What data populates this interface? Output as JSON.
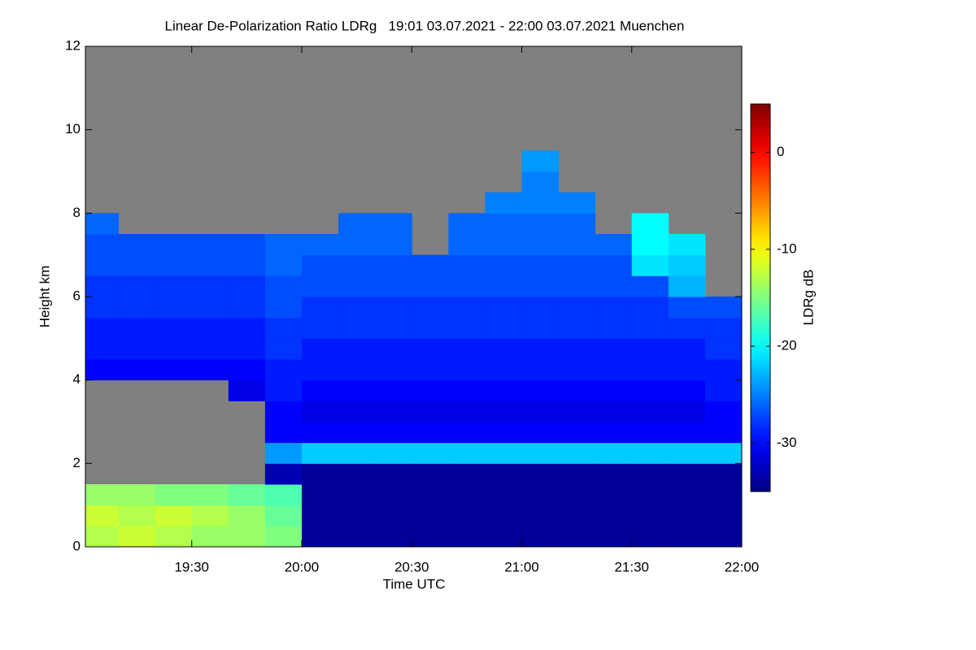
{
  "chart_data": {
    "type": "heatmap",
    "title": "Linear De-Polarization Ratio LDRg   19:01 03.07.2021 - 22:00 03.07.2021 Muenchen",
    "xlabel": "Time UTC",
    "ylabel": "Height km",
    "colorbar_label": "LDRg dB",
    "colormap": "jet",
    "missing_color": "#808080",
    "xlim": [
      19.0167,
      22.0
    ],
    "ylim": [
      0,
      12
    ],
    "clim": [
      -35,
      5
    ],
    "xticks": [
      {
        "value": 19.5,
        "label": "19:30"
      },
      {
        "value": 20,
        "label": "20:00"
      },
      {
        "value": 20.5,
        "label": "20:30"
      },
      {
        "value": 21,
        "label": "21:00"
      },
      {
        "value": 21.5,
        "label": "21:30"
      },
      {
        "value": 22,
        "label": "22:00"
      }
    ],
    "yticks": [
      0,
      2,
      4,
      6,
      8,
      10,
      12
    ],
    "cticks": [
      0,
      -10,
      -20,
      -30
    ],
    "x_edges": [
      19.0167,
      19.1667,
      19.3333,
      19.5,
      19.6667,
      19.8333,
      20.0,
      20.1667,
      20.3333,
      20.5,
      20.6667,
      20.8333,
      21.0,
      21.1667,
      21.3333,
      21.5,
      21.6667,
      21.8333,
      22.0
    ],
    "y_edges": [
      0,
      0.5,
      1,
      1.5,
      2,
      2.5,
      3,
      3.5,
      4,
      4.5,
      5,
      5.5,
      6,
      6.5,
      7,
      7.5,
      8,
      8.5,
      9,
      9.5,
      10,
      10.5,
      11,
      11.5,
      12
    ],
    "z": [
      [
        -13,
        -12,
        -14,
        null,
        null,
        null,
        null,
        null,
        -30,
        -29,
        -29,
        -28,
        -28,
        -27,
        -27,
        -26,
        null,
        null,
        null,
        null,
        null,
        null,
        null,
        null
      ],
      [
        -12,
        -13,
        -14,
        null,
        null,
        null,
        null,
        null,
        -30,
        -29,
        -29,
        -28,
        -28,
        -27,
        -27,
        null,
        null,
        null,
        null,
        null,
        null,
        null,
        null,
        null
      ],
      [
        -13,
        -12,
        -15,
        null,
        null,
        null,
        null,
        null,
        -30,
        -29,
        -29,
        -28,
        -28,
        -27,
        -27,
        null,
        null,
        null,
        null,
        null,
        null,
        null,
        null,
        null
      ],
      [
        -14,
        -13,
        -15,
        null,
        null,
        null,
        null,
        null,
        -30,
        -29,
        -29,
        -28,
        -28,
        -27,
        -27,
        null,
        null,
        null,
        null,
        null,
        null,
        null,
        null,
        null
      ],
      [
        -14,
        -14,
        -16,
        null,
        null,
        null,
        null,
        -31,
        -30,
        -29,
        -29,
        -28,
        -28,
        -27,
        -27,
        null,
        null,
        null,
        null,
        null,
        null,
        null,
        null,
        null
      ],
      [
        -15,
        -16,
        -17,
        -33,
        -24,
        -30,
        -30,
        -29,
        -29,
        -28,
        -28,
        -27,
        -27,
        -26,
        -26,
        null,
        null,
        null,
        null,
        null,
        null,
        null,
        null,
        null
      ],
      [
        -34,
        -34,
        -34,
        -34,
        -22,
        -30,
        -31,
        -30,
        -29,
        -29,
        -28,
        -28,
        -27,
        -27,
        -26,
        null,
        null,
        null,
        null,
        null,
        null,
        null,
        null,
        null
      ],
      [
        -34,
        -34,
        -34,
        -34,
        -22,
        -30,
        -31,
        -30,
        -29,
        -29,
        -28,
        -28,
        -27,
        -27,
        -26,
        -26,
        null,
        null,
        null,
        null,
        null,
        null,
        null,
        null
      ],
      [
        -34,
        -34,
        -34,
        -34,
        -22,
        -30,
        -31,
        -30,
        -29,
        -29,
        -28,
        -28,
        -27,
        -27,
        -26,
        -26,
        null,
        null,
        null,
        null,
        null,
        null,
        null,
        null
      ],
      [
        -34,
        -34,
        -34,
        -34,
        -22,
        -30,
        -31,
        -30,
        -29,
        -29,
        -28,
        -28,
        -27,
        -27,
        null,
        null,
        null,
        null,
        null,
        null,
        null,
        null,
        null,
        null
      ],
      [
        -34,
        -34,
        -34,
        -34,
        -22,
        -30,
        -31,
        -30,
        -29,
        -29,
        -28,
        -28,
        -27,
        -27,
        -26,
        -26,
        null,
        null,
        null,
        null,
        null,
        null,
        null,
        null
      ],
      [
        -34,
        -34,
        -34,
        -34,
        -22,
        -30,
        -31,
        -30,
        -29,
        -29,
        -28,
        -28,
        -27,
        -27,
        -26,
        -26,
        -25,
        null,
        null,
        null,
        null,
        null,
        null,
        null
      ],
      [
        -34,
        -34,
        -34,
        -34,
        -22,
        -30,
        -31,
        -30,
        -29,
        -29,
        -28,
        -28,
        -27,
        -27,
        -26,
        -26,
        -25,
        -25,
        -24,
        null,
        null,
        null,
        null,
        null
      ],
      [
        -34,
        -34,
        -34,
        -34,
        -22,
        -30,
        -31,
        -30,
        -29,
        -29,
        -28,
        -28,
        -27,
        -27,
        -26,
        -26,
        -25,
        null,
        null,
        null,
        null,
        null,
        null,
        null
      ],
      [
        -34,
        -34,
        -34,
        -34,
        -22,
        -30,
        -31,
        -30,
        -29,
        -29,
        -28,
        -28,
        -27,
        -27,
        -26,
        null,
        null,
        null,
        null,
        null,
        null,
        null,
        null,
        null
      ],
      [
        -34,
        -34,
        -34,
        -34,
        -22,
        -30,
        -31,
        -30,
        -29,
        -29,
        -28,
        -28,
        -27,
        -21,
        -20,
        -20,
        null,
        null,
        null,
        null,
        null,
        null,
        null,
        null
      ],
      [
        -34,
        -34,
        -34,
        -34,
        -22,
        -30,
        -31,
        -30,
        -29,
        -29,
        -28,
        -27,
        -23,
        -22,
        -21,
        null,
        null,
        null,
        null,
        null,
        null,
        null,
        null,
        null
      ],
      [
        -34,
        -34,
        -34,
        -34,
        -22,
        -30,
        -30,
        -29,
        -29,
        -28,
        -28,
        -27,
        null,
        null,
        null,
        null,
        null,
        null,
        null,
        null,
        null,
        null,
        null,
        null
      ]
    ]
  }
}
